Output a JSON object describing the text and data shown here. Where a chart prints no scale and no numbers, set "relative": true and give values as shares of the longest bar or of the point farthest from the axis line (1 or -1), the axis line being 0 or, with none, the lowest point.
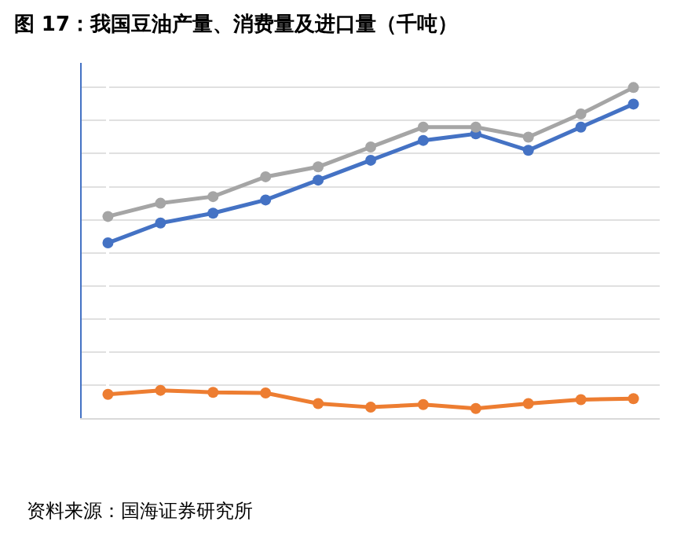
{
  "chart_data": {
    "type": "line",
    "title": "图 17：我国豆油产量、消费量及进口量（千吨）",
    "relative": true,
    "categories": [
      null,
      null,
      null,
      null,
      null,
      null,
      null,
      null,
      null,
      null,
      null
    ],
    "marker": "circle",
    "grid": "y",
    "annotations": [
      "资料来源：国海证券研究所"
    ],
    "series": [
      {
        "color": "#4472c4",
        "values": [
          0.53,
          0.59,
          0.62,
          0.66,
          0.72,
          0.78,
          0.84,
          0.86,
          0.81,
          0.88,
          0.95
        ]
      },
      {
        "color": "#ed7d31",
        "values": [
          0.072,
          0.084,
          0.078,
          0.076,
          0.044,
          0.033,
          0.041,
          0.029,
          0.044,
          0.056,
          0.059
        ]
      },
      {
        "color": "#a5a5a5",
        "values": [
          0.61,
          0.65,
          0.67,
          0.73,
          0.76,
          0.82,
          0.88,
          0.88,
          0.85,
          0.92,
          1
        ]
      }
    ]
  }
}
